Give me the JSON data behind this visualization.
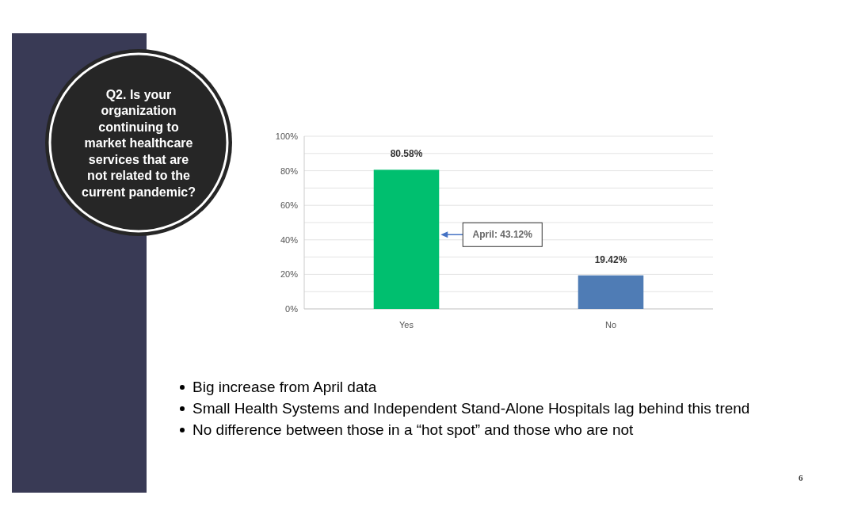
{
  "chart_data": {
    "type": "bar",
    "title": "Q2. Is your organization continuing to market healthcare services that are not related to the current pandemic?",
    "categories": [
      "Yes",
      "No"
    ],
    "values": [
      80.58,
      19.42
    ],
    "colors": [
      "#00bf6f",
      "#4f7cb5"
    ],
    "value_labels": [
      "80.58%",
      "19.42%"
    ],
    "ylim": [
      0,
      100
    ],
    "yticks": [
      {
        "value": 0,
        "label": "0%"
      },
      {
        "value": 10,
        "label": null
      },
      {
        "value": 20,
        "label": "20%"
      },
      {
        "value": 30,
        "label": null
      },
      {
        "value": 40,
        "label": "40%"
      },
      {
        "value": 50,
        "label": null
      },
      {
        "value": 60,
        "label": "60%"
      },
      {
        "value": 70,
        "label": null
      },
      {
        "value": 80,
        "label": "80%"
      },
      {
        "value": 90,
        "label": null
      },
      {
        "value": 100,
        "label": "100%"
      }
    ],
    "grid": "y",
    "annotations": [
      "April: 43.12%",
      "Big increase from April data",
      "Small Health Systems and Independent Stand-Alone Hospitals lag behind this trend",
      "No difference between those in a “hot spot” and those who are not",
      "6"
    ]
  }
}
